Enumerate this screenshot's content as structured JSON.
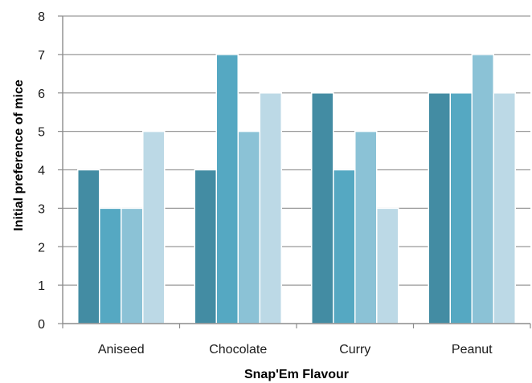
{
  "chart_data": {
    "type": "bar",
    "title": "",
    "xlabel": "Snap'Em Flavour",
    "ylabel": "Initial preference of mice",
    "categories": [
      "Aniseed",
      "Chocolate",
      "Curry",
      "Peanut"
    ],
    "series": [
      {
        "values": [
          4,
          4,
          6,
          6
        ],
        "color": "#438ca3"
      },
      {
        "values": [
          3,
          7,
          4,
          6
        ],
        "color": "#55a8c2"
      },
      {
        "values": [
          3,
          5,
          5,
          7
        ],
        "color": "#8bc2d6"
      },
      {
        "values": [
          5,
          6,
          3,
          6
        ],
        "color": "#bcd9e6"
      }
    ],
    "ylim": [
      0,
      8
    ],
    "yticks": [
      0,
      1,
      2,
      3,
      4,
      5,
      6,
      7,
      8
    ],
    "grid": true,
    "legend": "none",
    "colors": {
      "grid": "#9a9a9a",
      "axis": "#8c8c8c",
      "bar_edge": "#ffffff"
    }
  }
}
